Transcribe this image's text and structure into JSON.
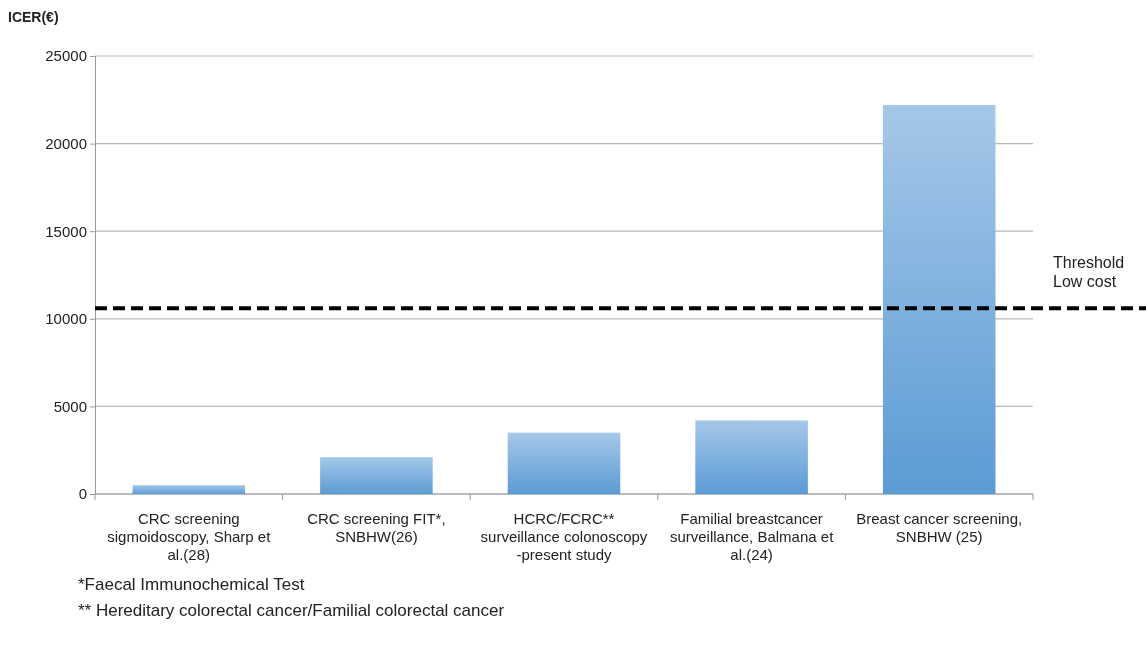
{
  "chart_data": {
    "type": "bar",
    "ylabel": "ICER(€)",
    "categories": [
      "CRC screening sigmoidoscopy, Sharp et al.(28)",
      "CRC screening FIT*, SNBHW(26)",
      "HCRC/FCRC** surveillance colonoscopy -present study",
      "Familial breastcancer surveillance, Balmana et al.(24)",
      "Breast cancer screening, SNBHW (25)"
    ],
    "values": [
      500,
      2100,
      3500,
      4200,
      22200
    ],
    "color": "#5b9bd5",
    "ylim": [
      0,
      25000
    ],
    "yticks": [
      0,
      5000,
      10000,
      15000,
      20000,
      25000
    ],
    "grid": "y",
    "ref_lines": [
      {
        "axis": "y",
        "value": 10600,
        "label": "Threshold Low cost",
        "color": "#000000",
        "line_style": "dashed"
      }
    ],
    "annotations": [
      "*Faecal Immunochemical Test",
      "** Hereditary colorectal cancer/Familial colorectal cancer"
    ]
  }
}
